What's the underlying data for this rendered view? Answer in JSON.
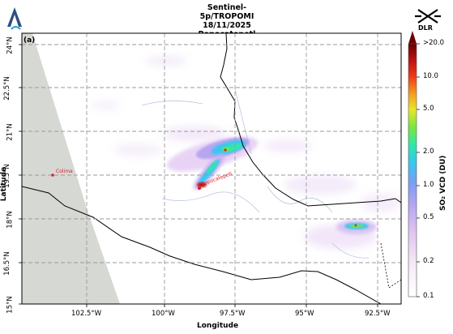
{
  "title": {
    "line1": "Sentinel-5p/TROPOMI",
    "line2": "18/11/2025",
    "line3": "Popocatepetl"
  },
  "panel_label": "(a)",
  "axes": {
    "xlabel": "Longitude",
    "ylabel": "Latitude",
    "xticks": [
      "102.5°W",
      "100°W",
      "97.5°W",
      "95°W",
      "92.5°W"
    ],
    "yticks": [
      "24°N",
      "22.5°N",
      "21°N",
      "19.5°N",
      "18°N",
      "16.5°N",
      "15°N"
    ]
  },
  "colorbar": {
    "label": "SO₂ VCD (DU)",
    "ticks": [
      ">20.0",
      "10.0",
      "5.0",
      "2.0",
      "1.0",
      "0.5",
      "0.2",
      "0.1"
    ]
  },
  "volcanoes": [
    {
      "name": "Colima"
    },
    {
      "name": "Popocatepetl"
    }
  ],
  "logos": {
    "right": "DLR"
  },
  "colors": {
    "missing_data": "#d6d8d3",
    "grid": "#9a9a9a",
    "coast": "#000000",
    "river": "#a9b8d8",
    "volcano_marker": "#e0202a"
  },
  "map": {
    "projection": "PlateCarree",
    "lon_range": [
      -105,
      -91.5
    ],
    "lat_range": [
      15,
      24.8
    ],
    "data_extent_note": ""
  }
}
